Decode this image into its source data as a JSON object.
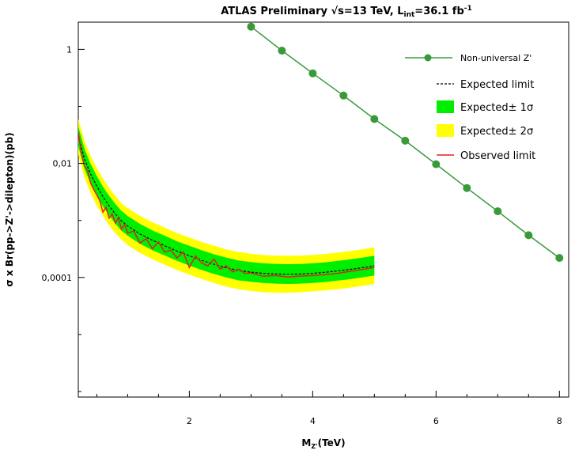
{
  "chart_data": {
    "type": "line",
    "title": {
      "main": "ATLAS Preliminary √s=13 TeV, L",
      "sub": "int",
      "eq": "=36.1 fb",
      "sup": "-1"
    },
    "xlabel": {
      "main": "M",
      "sub": "Z'",
      "unit": "(TeV)"
    },
    "ylabel": "σ x Br(pp->Z'->dilepton)(pb)",
    "x_log": false,
    "y_log": true,
    "xlim": [
      0.2,
      8.15
    ],
    "ylim": [
      8e-07,
      3
    ],
    "x_ticks": [
      {
        "value": 2,
        "label": "2"
      },
      {
        "value": 4,
        "label": "4"
      },
      {
        "value": 6,
        "label": "6"
      },
      {
        "value": 8,
        "label": "8"
      }
    ],
    "y_ticks": [
      {
        "value": 1,
        "label": "1"
      },
      {
        "value": 0.01,
        "label": "0,01"
      },
      {
        "value": 0.0001,
        "label": "0,0001"
      }
    ],
    "legend_position": "top-right",
    "legend": [
      {
        "label": "Non-universal Z'",
        "kind": "line-marker",
        "color": "#3a9a3a"
      },
      {
        "label": "Expected limit",
        "kind": "dashed",
        "color": "#000000"
      },
      {
        "label": "Expected± 1σ",
        "kind": "fill",
        "color": "#00ee00"
      },
      {
        "label": "Expected± 2σ",
        "kind": "fill",
        "color": "#ffff00"
      },
      {
        "label": "Observed limit",
        "kind": "line",
        "color": "#dd2222"
      }
    ],
    "series": [
      {
        "name": "Non-universal Z'",
        "style": "line-marker",
        "color": "#3a9a3a",
        "x": [
          3.0,
          3.5,
          4.0,
          4.5,
          5.0,
          5.5,
          6.0,
          6.5,
          7.0,
          7.5,
          8.0
        ],
        "y": [
          2.5,
          0.95,
          0.38,
          0.155,
          0.06,
          0.025,
          0.0097,
          0.0037,
          0.00145,
          0.00055,
          0.00022
        ]
      },
      {
        "name": "Expected limit",
        "style": "dashed",
        "color": "#000000",
        "x": [
          0.2,
          0.3,
          0.4,
          0.5,
          0.6,
          0.7,
          0.8,
          0.9,
          1.0,
          1.2,
          1.4,
          1.6,
          1.8,
          2.0,
          2.2,
          2.4,
          2.6,
          2.8,
          3.0,
          3.2,
          3.4,
          3.6,
          3.8,
          4.0,
          4.2,
          4.4,
          4.6,
          4.8,
          5.0
        ],
        "y": [
          0.03,
          0.012,
          0.0065,
          0.004,
          0.0026,
          0.0018,
          0.0013,
          0.00098,
          0.0008,
          0.00058,
          0.00045,
          0.00036,
          0.00029,
          0.00024,
          0.0002,
          0.00017,
          0.000148,
          0.000132,
          0.000124,
          0.000118,
          0.000115,
          0.000114,
          0.000115,
          0.000118,
          0.000123,
          0.00013,
          0.000138,
          0.000148,
          0.00016
        ]
      },
      {
        "name": "Observed limit",
        "style": "line",
        "color": "#dd2222",
        "x": [
          0.2,
          0.25,
          0.3,
          0.35,
          0.4,
          0.45,
          0.5,
          0.55,
          0.6,
          0.65,
          0.7,
          0.75,
          0.8,
          0.85,
          0.9,
          0.95,
          1.0,
          1.1,
          1.2,
          1.3,
          1.4,
          1.5,
          1.6,
          1.7,
          1.8,
          1.9,
          2.0,
          2.1,
          2.2,
          2.3,
          2.4,
          2.5,
          2.6,
          2.7,
          2.8,
          2.9,
          3.0,
          3.2,
          3.4,
          3.6,
          3.8,
          4.0,
          4.2,
          4.4,
          4.6,
          4.8,
          5.0
        ],
        "y": [
          0.035,
          0.015,
          0.009,
          0.0075,
          0.0045,
          0.0035,
          0.0028,
          0.0022,
          0.0014,
          0.0017,
          0.0011,
          0.0013,
          0.0009,
          0.0011,
          0.0007,
          0.00085,
          0.0006,
          0.00065,
          0.0004,
          0.00048,
          0.00032,
          0.00042,
          0.00028,
          0.0003,
          0.00022,
          0.00028,
          0.00015,
          0.00024,
          0.00018,
          0.00016,
          0.00021,
          0.00014,
          0.00016,
          0.000125,
          0.00014,
          0.000118,
          0.00012,
          0.000105,
          0.000108,
          0.000102,
          0.000106,
          0.000108,
          0.000112,
          0.000118,
          0.000128,
          0.000138,
          0.00015
        ]
      }
    ],
    "bands": [
      {
        "name": "Expected± 2σ",
        "color": "#ffff00",
        "x": [
          0.2,
          0.3,
          0.4,
          0.5,
          0.6,
          0.7,
          0.8,
          0.9,
          1.0,
          1.2,
          1.4,
          1.6,
          1.8,
          2.0,
          2.2,
          2.4,
          2.6,
          2.8,
          3.0,
          3.2,
          3.4,
          3.6,
          3.8,
          4.0,
          4.2,
          4.4,
          4.6,
          4.8,
          5.0
        ],
        "low": [
          0.014,
          0.0056,
          0.003,
          0.0018,
          0.0012,
          0.00082,
          0.0006,
          0.00046,
          0.00037,
          0.00027,
          0.00021,
          0.000168,
          0.000135,
          0.000112,
          9.4e-05,
          8e-05,
          6.9e-05,
          6.2e-05,
          5.8e-05,
          5.5e-05,
          5.4e-05,
          5.4e-05,
          5.5e-05,
          5.7e-05,
          5.9e-05,
          6.2e-05,
          6.6e-05,
          7.1e-05,
          7.7e-05
        ],
        "high": [
          0.06,
          0.025,
          0.0135,
          0.0083,
          0.0054,
          0.0037,
          0.0027,
          0.002,
          0.00165,
          0.0012,
          0.00093,
          0.00075,
          0.0006,
          0.0005,
          0.00042,
          0.00036,
          0.00031,
          0.00028,
          0.00026,
          0.000248,
          0.000242,
          0.00024,
          0.000242,
          0.000248,
          0.000258,
          0.000272,
          0.00029,
          0.00031,
          0.00034
        ]
      },
      {
        "name": "Expected± 1σ",
        "color": "#00ee00",
        "x": [
          0.2,
          0.3,
          0.4,
          0.5,
          0.6,
          0.7,
          0.8,
          0.9,
          1.0,
          1.2,
          1.4,
          1.6,
          1.8,
          2.0,
          2.2,
          2.4,
          2.6,
          2.8,
          3.0,
          3.2,
          3.4,
          3.6,
          3.8,
          4.0,
          4.2,
          4.4,
          4.6,
          4.8,
          5.0
        ],
        "low": [
          0.02,
          0.008,
          0.0044,
          0.0027,
          0.00176,
          0.00122,
          0.00088,
          0.00066,
          0.00054,
          0.00039,
          0.0003,
          0.000243,
          0.000196,
          0.000162,
          0.000135,
          0.000115,
          0.0001,
          8.9e-05,
          8.4e-05,
          8e-05,
          7.8e-05,
          7.7e-05,
          7.8e-05,
          8e-05,
          8.3e-05,
          8.8e-05,
          9.3e-05,
          0.0001,
          0.000108
        ],
        "high": [
          0.045,
          0.018,
          0.0098,
          0.006,
          0.0039,
          0.0027,
          0.00195,
          0.00147,
          0.0012,
          0.00087,
          0.00067,
          0.00054,
          0.00043,
          0.00036,
          0.0003,
          0.000255,
          0.000222,
          0.000198,
          0.000186,
          0.000177,
          0.000172,
          0.000171,
          0.000172,
          0.000177,
          0.000184,
          0.000195,
          0.000207,
          0.000222,
          0.00024
        ]
      }
    ]
  }
}
